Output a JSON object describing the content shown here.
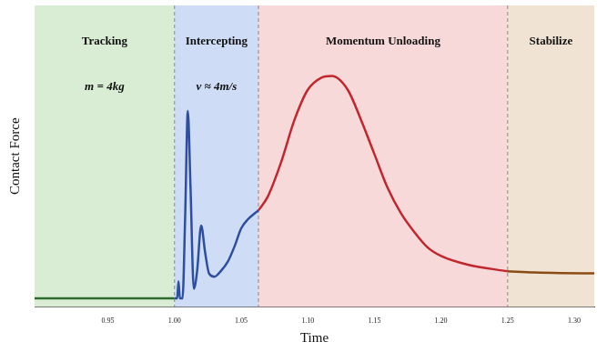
{
  "chart_data": {
    "type": "line",
    "x_label": "Time",
    "y_label": "Contact Force",
    "xlim": [
      0.895,
      1.315
    ],
    "xticks": [
      0.95,
      {
        "value": 1.0,
        "label": "1.00"
      },
      1.05,
      {
        "value": 1.1,
        "label": "1.10"
      },
      1.15,
      {
        "value": 1.2,
        "label": "1.20"
      },
      1.25,
      {
        "value": 1.3,
        "label": "1.30"
      }
    ],
    "ylim": [
      0,
      100
    ],
    "tick_labels": "x",
    "grid": false,
    "regions": [
      {
        "label": "Tracking",
        "from": 0.895,
        "to": 1.0,
        "color": "#d9edd4",
        "annotation": "m = 4kg"
      },
      {
        "label": "Intercepting",
        "from": 1.0,
        "to": 1.063,
        "color": "#cfdcf6",
        "annotation": "v ≈ 4m/s"
      },
      {
        "label": "Momentum Unloading",
        "from": 1.063,
        "to": 1.25,
        "color": "#f8d9d9"
      },
      {
        "label": "Stabilize",
        "from": 1.25,
        "to": 1.315,
        "color": "#f0e3d3"
      }
    ],
    "series": [
      {
        "color": "#2f6b2f",
        "x": [
          0.895,
          1.0
        ],
        "values": [
          2.8,
          2.8
        ]
      },
      {
        "color": "#2e4f9f",
        "x": [
          1.0,
          1.002,
          1.003,
          1.004,
          1.006,
          1.008,
          1.01,
          1.012,
          1.0145,
          1.017,
          1.02,
          1.023,
          1.026,
          1.03,
          1.035,
          1.04,
          1.045,
          1.05,
          1.055,
          1.06,
          1.063
        ],
        "values": [
          2.8,
          2.8,
          8.5,
          2.8,
          2.8,
          30,
          65,
          40,
          6,
          12,
          27,
          18,
          11,
          10,
          12,
          15,
          20,
          26,
          29,
          31,
          32
        ]
      },
      {
        "color": "#c1272d",
        "x": [
          1.063,
          1.07,
          1.08,
          1.09,
          1.1,
          1.11,
          1.118,
          1.13,
          1.14,
          1.15,
          1.16,
          1.17,
          1.18,
          1.19,
          1.2,
          1.22,
          1.25
        ],
        "values": [
          32,
          36.6,
          48,
          62,
          72,
          76,
          76.6,
          72,
          62,
          50.7,
          39.4,
          31,
          24.8,
          19.7,
          16.9,
          14,
          11.8
        ]
      },
      {
        "color": "#8a4b14",
        "x": [
          1.25,
          1.27,
          1.29,
          1.315
        ],
        "values": [
          11.8,
          11.4,
          11.2,
          11.1
        ]
      }
    ]
  }
}
